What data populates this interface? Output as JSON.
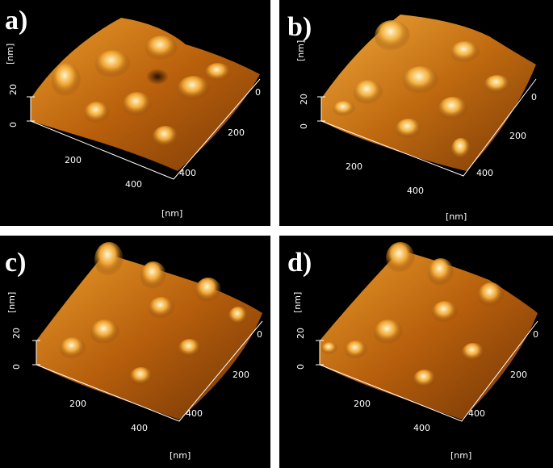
{
  "panels": [
    {
      "id": "a",
      "label": "a)",
      "z_unit": "[nm]",
      "z_ticks": [
        "20",
        "0"
      ],
      "x_ticks": [
        "200",
        "400"
      ],
      "y_ticks": [
        "0",
        "200",
        "400"
      ],
      "xy_unit": "[nm]"
    },
    {
      "id": "b",
      "label": "b)",
      "z_unit": "[nm]",
      "z_ticks": [
        "20",
        "0"
      ],
      "x_ticks": [
        "200",
        "400"
      ],
      "y_ticks": [
        "0",
        "200",
        "400"
      ],
      "xy_unit": "[nm]"
    },
    {
      "id": "c",
      "label": "c)",
      "z_unit": "[nm]",
      "z_ticks": [
        "20",
        "0"
      ],
      "x_ticks": [
        "200",
        "400"
      ],
      "y_ticks": [
        "0",
        "200",
        "400"
      ],
      "xy_unit": "[nm]"
    },
    {
      "id": "d",
      "label": "d)",
      "z_unit": "[nm]",
      "z_ticks": [
        "20",
        "0"
      ],
      "x_ticks": [
        "200",
        "400"
      ],
      "y_ticks": [
        "0",
        "200",
        "400"
      ],
      "xy_unit": "[nm]"
    }
  ],
  "colors": {
    "background": "#000000",
    "surface_dark": "#5a2a05",
    "surface_mid": "#c8700f",
    "surface_light": "#ffe2a0",
    "text": "#ffffff"
  }
}
